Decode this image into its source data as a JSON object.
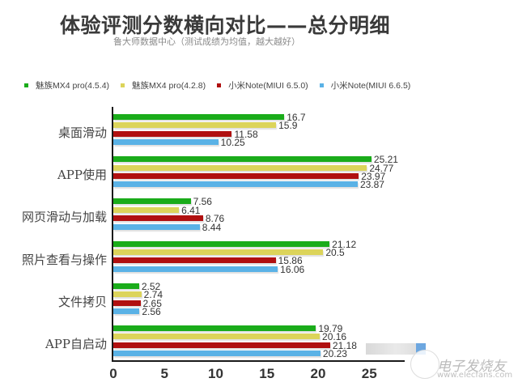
{
  "header": {
    "title": "体验评测分数横向对比——总分明细",
    "subtitle": "鲁大师数据中心（测试成绩为均值，越大越好）"
  },
  "legend": [
    {
      "label": "魅族MX4 pro(4.5.4)",
      "color": "#1aac1a"
    },
    {
      "label": "魅族MX4 pro(4.2.8)",
      "color": "#dcd45a"
    },
    {
      "label": "小米Note(MIUI 6.5.0)",
      "color": "#b01010"
    },
    {
      "label": "小米Note(MIUI 6.6.5)",
      "color": "#5ab2e6"
    }
  ],
  "watermark": {
    "brand": "电子发烧友",
    "url": "www.elecfans.com"
  },
  "chart_data": {
    "type": "bar",
    "orientation": "horizontal",
    "title": "体验评测分数横向对比——总分明细",
    "subtitle": "鲁大师数据中心（测试成绩为均值，越大越好）",
    "xlabel": "",
    "ylabel": "",
    "xlim": [
      0,
      28
    ],
    "x_ticks": [
      "0",
      "5",
      "10",
      "15",
      "20",
      "25"
    ],
    "grid": false,
    "legend_position": "top",
    "categories": [
      "桌面滑动",
      "APP使用",
      "网页滑动与加载",
      "照片查看与操作",
      "文件拷贝",
      "APP自启动"
    ],
    "series": [
      {
        "name": "魅族MX4 pro(4.5.4)",
        "color": "#1aac1a",
        "values": [
          16.7,
          25.21,
          7.56,
          21.12,
          2.52,
          19.79
        ],
        "labels": [
          "16.7",
          "25.21",
          "7.56",
          "21.12",
          "2.52",
          "19.79"
        ]
      },
      {
        "name": "魅族MX4 pro(4.2.8)",
        "color": "#dcd45a",
        "values": [
          15.9,
          24.77,
          6.41,
          20.5,
          2.74,
          20.16
        ],
        "labels": [
          "15.9",
          "24.77",
          "6.41",
          "20.5",
          "2.74",
          "20.16"
        ]
      },
      {
        "name": "小米Note(MIUI 6.5.0)",
        "color": "#b01010",
        "values": [
          11.58,
          23.97,
          8.76,
          15.86,
          2.65,
          21.18
        ],
        "labels": [
          "11.58",
          "23.97",
          "8.76",
          "15.86",
          "2.65",
          "21.18"
        ]
      },
      {
        "name": "小米Note(MIUI 6.6.5)",
        "color": "#5ab2e6",
        "values": [
          10.25,
          23.87,
          8.44,
          16.06,
          2.56,
          20.23
        ],
        "labels": [
          "10.25",
          "23.87",
          "8.44",
          "16.06",
          "2.56",
          "20.23"
        ]
      }
    ]
  }
}
